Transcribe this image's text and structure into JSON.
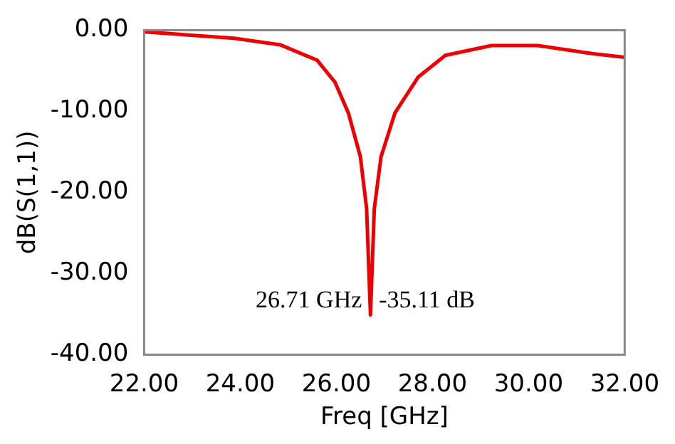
{
  "chart_data": {
    "type": "line",
    "xlabel": "Freq [GHz]",
    "ylabel": "dB(S(1,1))",
    "x": [
      22,
      23.87,
      24.83,
      25.6,
      25.97,
      26.25,
      26.5,
      26.63,
      26.71,
      26.79,
      26.93,
      27.22,
      27.7,
      28.27,
      29.23,
      30.19,
      31.34,
      32
    ],
    "series": [
      {
        "color": "#ee0000",
        "values": [
          -0.2,
          -1.0,
          -1.8,
          -3.7,
          -6.4,
          -10.2,
          -15.6,
          -22,
          -35.11,
          -22,
          -15.6,
          -10.2,
          -5.8,
          -3.1,
          -1.9,
          -1.9,
          -2.9,
          -3.35
        ]
      }
    ],
    "xlim": [
      22,
      32
    ],
    "xticks": [
      {
        "value": 22,
        "label": "22.00"
      },
      {
        "value": 24,
        "label": "24.00"
      },
      {
        "value": 26,
        "label": "26.00"
      },
      {
        "value": 28,
        "label": "28.00"
      },
      {
        "value": 30,
        "label": "30.00"
      },
      {
        "value": 32,
        "label": "32.00"
      }
    ],
    "ylim": [
      -40,
      0
    ],
    "yticks": [
      {
        "value": -40,
        "label": "-40.00"
      },
      {
        "value": -30,
        "label": "-30.00"
      },
      {
        "value": -20,
        "label": "-20.00"
      },
      {
        "value": -10,
        "label": "-10.00"
      },
      {
        "value": 0,
        "label": "0.00"
      }
    ],
    "grid": false,
    "legend": false,
    "marker": "none",
    "line_style": "solid",
    "annotations": [
      {
        "text": "26.71 GHz",
        "x": 26.71,
        "y": -35.11
      },
      {
        "text": "-35.11 dB",
        "x": 26.71,
        "y": -35.11
      }
    ]
  }
}
